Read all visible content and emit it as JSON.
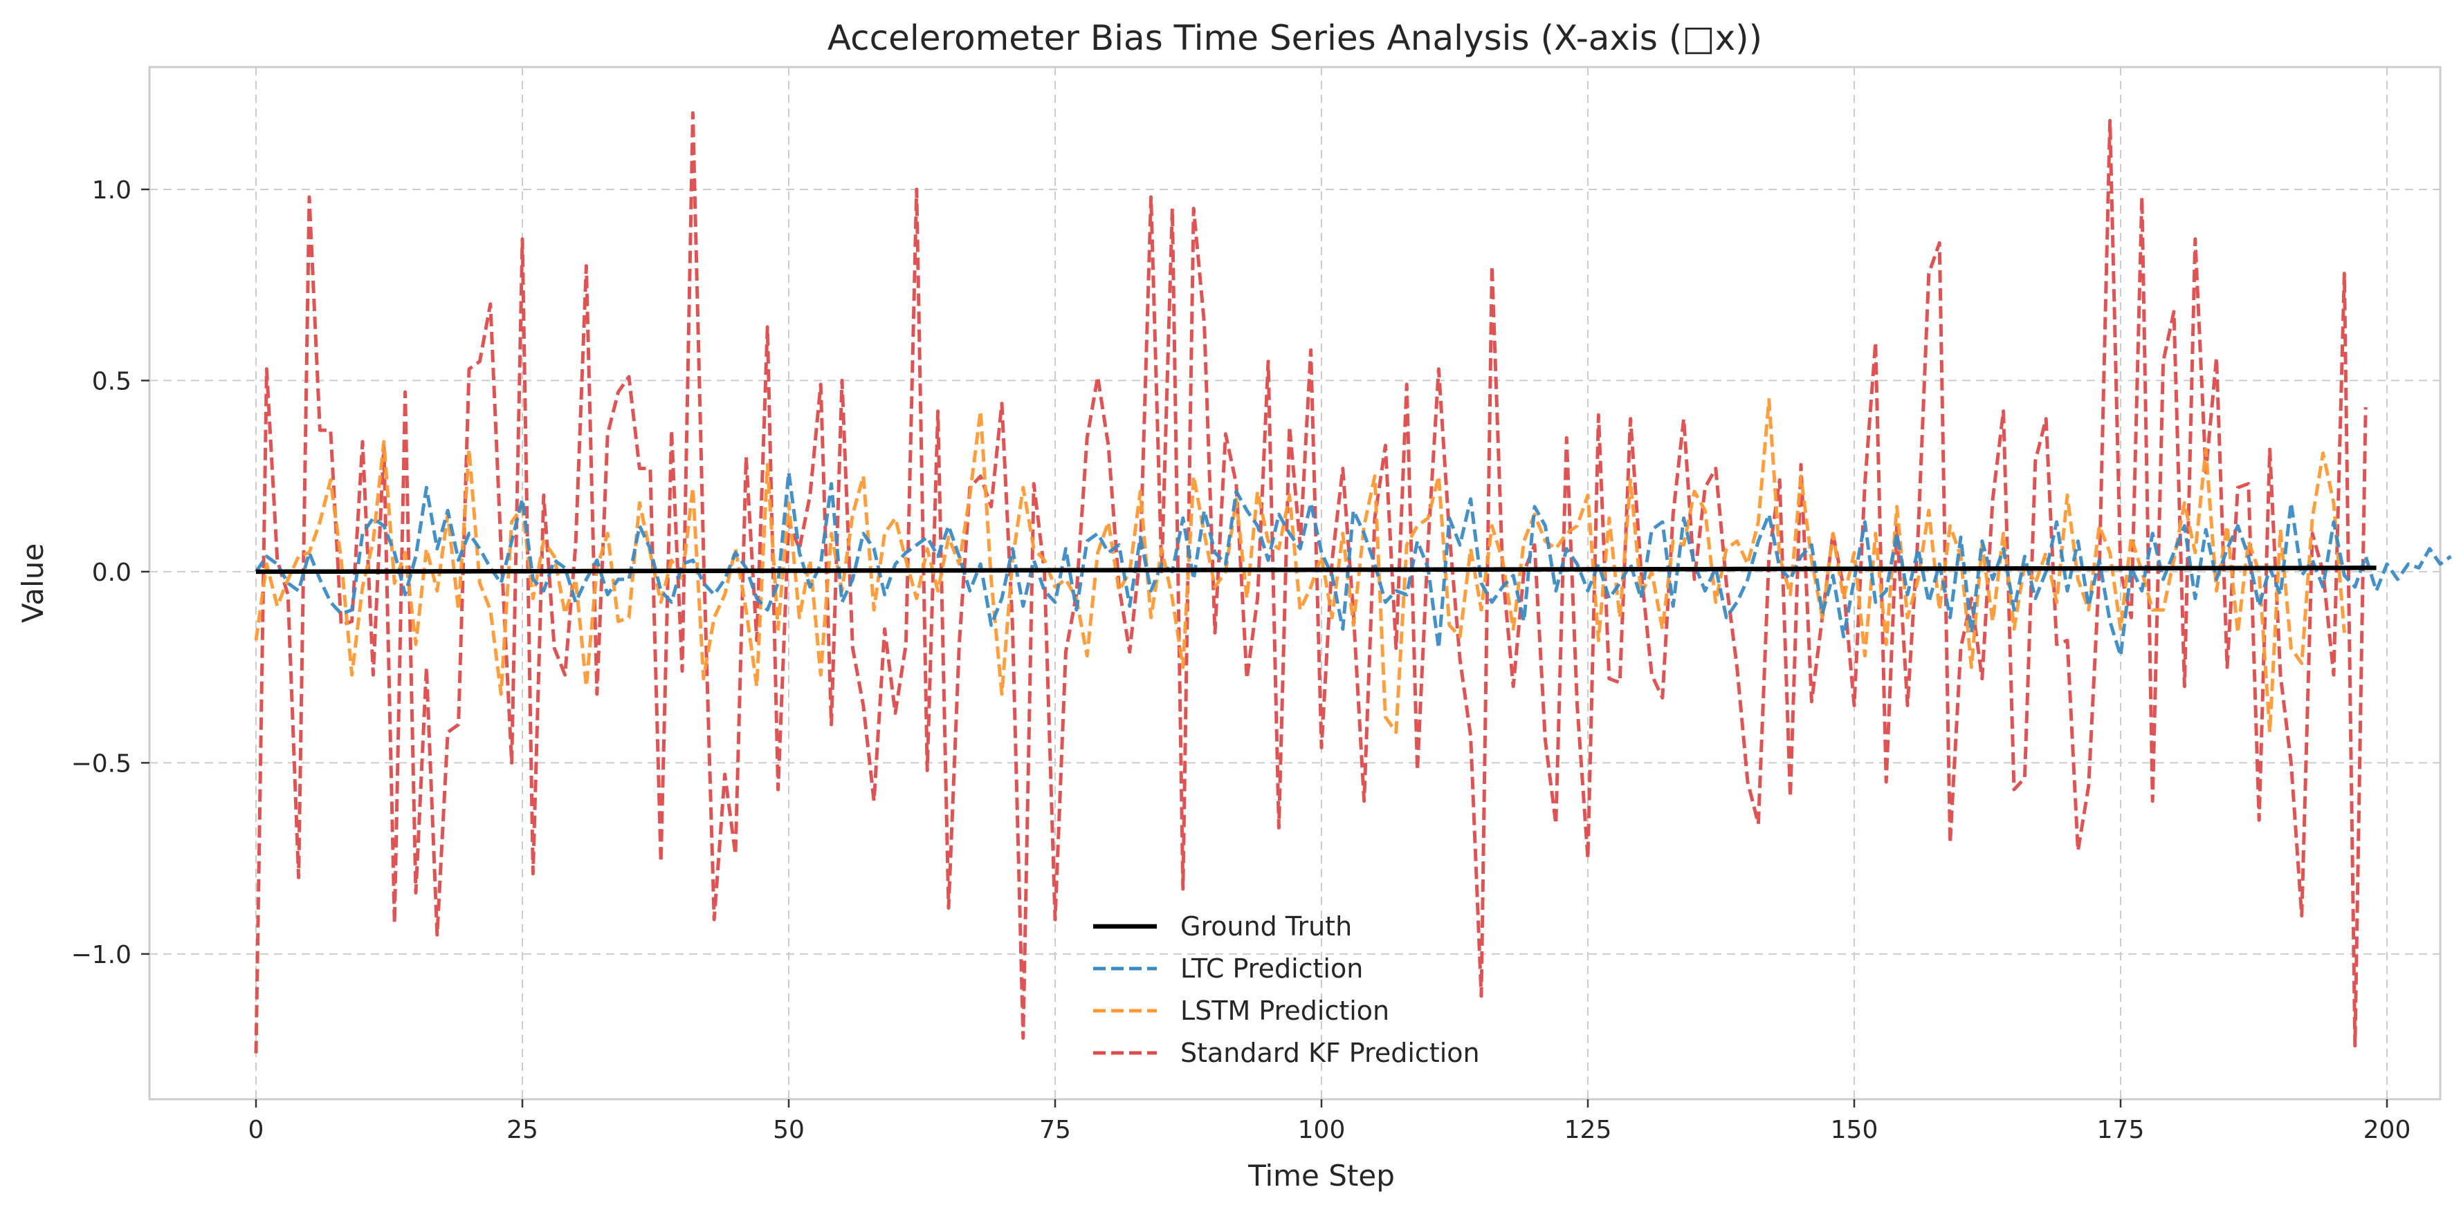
{
  "chart_data": {
    "type": "line",
    "title": "Accelerometer Bias Time Series Analysis (X-axis (□x))",
    "xlabel": "Time Step",
    "ylabel": "Value",
    "xlim": [
      -10,
      205
    ],
    "ylim": [
      -1.38,
      1.32
    ],
    "xticks": [
      0,
      25,
      50,
      75,
      100,
      125,
      150,
      175,
      200
    ],
    "yticks": [
      -1.0,
      -0.5,
      0.0,
      0.5,
      1.0
    ],
    "xtick_labels": [
      "0",
      "25",
      "50",
      "75",
      "100",
      "125",
      "150",
      "175",
      "200"
    ],
    "ytick_labels": [
      "−1.0",
      "−0.5",
      "0.0",
      "0.5",
      "1.0"
    ],
    "grid": true,
    "legend_position": "lower-center",
    "colors": {
      "ground_truth": "#000000",
      "ltc": "#3a8ac4",
      "lstm": "#ff9933",
      "kf": "#dc4a4a",
      "grid": "#cccccc",
      "frame": "#cccccc"
    },
    "series": [
      {
        "name": "Ground Truth",
        "key": "ground_truth",
        "style": "solid",
        "x_start": 0,
        "x_step": 1,
        "values": [
          0.0,
          0.0001,
          0.0001,
          0.0002,
          0.0002,
          0.0003,
          0.0003,
          0.0004,
          0.0004,
          0.0005,
          0.0005,
          0.0006,
          0.0006,
          0.0007,
          0.0007,
          0.0008,
          0.0008,
          0.0009,
          0.0009,
          0.001,
          0.001,
          0.0011,
          0.0011,
          0.0012,
          0.0012,
          0.0013,
          0.0013,
          0.0014,
          0.0014,
          0.0015,
          0.0015,
          0.0016,
          0.0016,
          0.0017,
          0.0017,
          0.0018,
          0.0018,
          0.0019,
          0.0019,
          0.002,
          0.002,
          0.0021,
          0.0021,
          0.0022,
          0.0022,
          0.0023,
          0.0023,
          0.0024,
          0.0024,
          0.0025,
          0.0025,
          0.0026,
          0.0026,
          0.0027,
          0.0027,
          0.0028,
          0.0028,
          0.0029,
          0.0029,
          0.003,
          0.003,
          0.0031,
          0.0031,
          0.0032,
          0.0032,
          0.0033,
          0.0033,
          0.0034,
          0.0034,
          0.0035,
          0.0035,
          0.0036,
          0.0036,
          0.0037,
          0.0037,
          0.0038,
          0.0038,
          0.0039,
          0.0039,
          0.004,
          0.004,
          0.0041,
          0.0041,
          0.0042,
          0.0042,
          0.0043,
          0.0043,
          0.0044,
          0.0044,
          0.0045,
          0.0045,
          0.0046,
          0.0046,
          0.0047,
          0.0047,
          0.0048,
          0.0048,
          0.0049,
          0.0049,
          0.005,
          0.005,
          0.0051,
          0.0051,
          0.0052,
          0.0052,
          0.0053,
          0.0053,
          0.0054,
          0.0054,
          0.0055,
          0.0055,
          0.0056,
          0.0056,
          0.0057,
          0.0057,
          0.0058,
          0.0058,
          0.0059,
          0.0059,
          0.006,
          0.006,
          0.0061,
          0.0061,
          0.0062,
          0.0062,
          0.0063,
          0.0063,
          0.0064,
          0.0064,
          0.0065,
          0.0065,
          0.0066,
          0.0066,
          0.0067,
          0.0067,
          0.0068,
          0.0068,
          0.0069,
          0.0069,
          0.007,
          0.007,
          0.0071,
          0.0071,
          0.0072,
          0.0072,
          0.0073,
          0.0073,
          0.0074,
          0.0074,
          0.0075,
          0.0075,
          0.0076,
          0.0076,
          0.0077,
          0.0077,
          0.0078,
          0.0078,
          0.0079,
          0.0079,
          0.008,
          0.008,
          0.0081,
          0.0081,
          0.0082,
          0.0082,
          0.0083,
          0.0083,
          0.0084,
          0.0084,
          0.0085,
          0.0085,
          0.0086,
          0.0086,
          0.0087,
          0.0087,
          0.0088,
          0.0088,
          0.0089,
          0.0089,
          0.009,
          0.009,
          0.0091,
          0.0091,
          0.0092,
          0.0092,
          0.0093,
          0.0093,
          0.0094,
          0.0094,
          0.0095,
          0.0095,
          0.0096,
          0.0096,
          0.0097,
          0.0097,
          0.0098,
          0.0098,
          0.0099,
          0.0099,
          0.01
        ]
      },
      {
        "name": "LTC Prediction",
        "key": "ltc",
        "style": "dashed",
        "x_start": 0,
        "x_step": 1,
        "values": [
          0.0,
          0.04,
          0.02,
          -0.03,
          -0.05,
          0.05,
          -0.02,
          -0.08,
          -0.11,
          -0.1,
          0.1,
          0.14,
          0.12,
          0.05,
          -0.06,
          0.04,
          0.22,
          0.06,
          0.16,
          0.03,
          0.1,
          0.06,
          0.01,
          -0.03,
          0.08,
          0.19,
          -0.02,
          -0.05,
          0.03,
          0.01,
          -0.08,
          -0.02,
          0.03,
          -0.06,
          -0.02,
          -0.02,
          0.12,
          0.06,
          -0.05,
          -0.08,
          0.02,
          0.03,
          -0.03,
          -0.06,
          -0.02,
          0.05,
          0.01,
          -0.07,
          -0.1,
          -0.03,
          0.26,
          0.05,
          -0.04,
          0.02,
          0.23,
          -0.08,
          -0.02,
          0.1,
          0.06,
          -0.06,
          0.02,
          0.05,
          0.07,
          0.09,
          0.04,
          0.12,
          0.04,
          -0.05,
          0.02,
          -0.14,
          -0.07,
          0.06,
          -0.09,
          0.03,
          -0.05,
          -0.08,
          0.06,
          -0.1,
          0.08,
          0.1,
          0.05,
          0.07,
          -0.09,
          0.09,
          -0.05,
          0.02,
          0.0,
          0.14,
          -0.02,
          0.16,
          0.05,
          0.02,
          0.21,
          0.16,
          0.12,
          0.03,
          0.15,
          0.1,
          0.06,
          0.18,
          0.05,
          -0.01,
          -0.15,
          0.16,
          0.1,
          0.02,
          -0.08,
          -0.05,
          -0.06,
          0.08,
          0.01,
          -0.2,
          0.14,
          0.07,
          0.19,
          -0.03,
          -0.08,
          -0.04,
          -0.01,
          -0.13,
          0.17,
          0.12,
          -0.05,
          0.06,
          0.02,
          -0.05,
          0.02,
          -0.07,
          -0.03,
          0.02,
          -0.07,
          0.11,
          0.13,
          -0.09,
          0.14,
          0.02,
          -0.05,
          0.01,
          -0.12,
          -0.08,
          -0.02,
          0.08,
          0.15,
          0.01,
          -0.02,
          0.04,
          0.07,
          -0.11,
          -0.01,
          -0.17,
          -0.02,
          0.13,
          -0.08,
          -0.05,
          0.1,
          -0.06,
          0.06,
          -0.08,
          0.02,
          -0.12,
          0.09,
          -0.16,
          0.08,
          -0.02,
          0.06,
          -0.1,
          0.04,
          -0.07,
          0.0,
          0.13,
          -0.05,
          0.08,
          -0.09,
          0.03,
          -0.13,
          -0.22,
          0.01,
          -0.05,
          0.1,
          -0.02,
          0.05,
          0.12,
          -0.07,
          0.11,
          -0.02,
          0.06,
          0.12,
          0.04,
          -0.09,
          0.01,
          -0.06,
          0.18,
          -0.01,
          0.03,
          -0.04,
          0.13,
          -0.01,
          -0.04,
          0.04,
          -0.05,
          0.02,
          -0.02,
          0.02,
          0.01,
          0.06,
          0.02,
          0.04
        ]
      },
      {
        "name": "LSTM Prediction",
        "key": "lstm",
        "style": "dashed",
        "x_start": 0,
        "x_step": 1,
        "values": [
          -0.18,
          0.02,
          -0.09,
          -0.02,
          0.04,
          0.05,
          0.13,
          0.24,
          0.03,
          -0.27,
          -0.04,
          0.08,
          0.34,
          -0.03,
          0.05,
          -0.19,
          0.06,
          -0.05,
          0.15,
          -0.1,
          0.32,
          -0.03,
          -0.1,
          -0.32,
          0.13,
          0.17,
          -0.07,
          0.08,
          0.04,
          -0.11,
          -0.02,
          -0.3,
          0.01,
          0.1,
          -0.13,
          -0.12,
          0.18,
          0.05,
          -0.08,
          0.03,
          -0.02,
          0.22,
          -0.28,
          -0.12,
          -0.06,
          0.06,
          -0.1,
          -0.3,
          0.28,
          -0.15,
          0.18,
          -0.12,
          0.03,
          -0.27,
          0.1,
          -0.05,
          0.15,
          0.25,
          -0.1,
          0.1,
          0.14,
          0.03,
          -0.07,
          0.06,
          -0.05,
          0.09,
          0.02,
          0.2,
          0.42,
          -0.02,
          -0.32,
          0.03,
          0.22,
          0.06,
          0.03,
          -0.04,
          -0.02,
          -0.07,
          -0.22,
          0.05,
          0.13,
          -0.05,
          0.0,
          0.21,
          -0.12,
          0.06,
          -0.07,
          -0.25,
          0.25,
          0.1,
          -0.04,
          0.0,
          0.19,
          -0.07,
          0.21,
          0.08,
          0.06,
          0.2,
          -0.1,
          -0.04,
          0.04,
          -0.12,
          0.1,
          -0.14,
          0.12,
          0.25,
          -0.38,
          -0.42,
          0.07,
          0.12,
          0.14,
          0.25,
          -0.14,
          -0.17,
          0.06,
          -0.1,
          0.12,
          0.03,
          -0.15,
          0.08,
          0.15,
          0.08,
          0.06,
          0.1,
          0.12,
          0.2,
          -0.18,
          0.14,
          -0.12,
          0.24,
          -0.06,
          0.0,
          -0.15,
          0.08,
          0.07,
          0.21,
          0.16,
          -0.08,
          0.06,
          0.08,
          0.02,
          0.13,
          0.45,
          0.04,
          -0.06,
          0.25,
          0.03,
          -0.12,
          0.1,
          -0.07,
          0.05,
          -0.22,
          0.1,
          -0.19,
          0.17,
          -0.12,
          -0.02,
          0.16,
          -0.1,
          0.12,
          0.04,
          -0.25,
          0.07,
          -0.13,
          0.1,
          -0.15,
          0.02,
          -0.03,
          0.05,
          -0.08,
          0.2,
          -0.02,
          -0.1,
          0.12,
          0.05,
          -0.15,
          0.09,
          0.0,
          -0.1,
          -0.1,
          0.03,
          0.18,
          0.05,
          0.32,
          -0.05,
          0.12,
          -0.16,
          0.08,
          0.0,
          -0.42,
          0.11,
          -0.2,
          -0.24,
          0.14,
          0.31,
          0.18,
          -0.16
        ]
      },
      {
        "name": "Standard KF Prediction",
        "key": "kf",
        "style": "dashed",
        "x_start": 0,
        "x_step": 1,
        "values": [
          -1.26,
          0.53,
          0.03,
          -0.06,
          -0.8,
          0.98,
          0.37,
          0.37,
          -0.14,
          -0.13,
          0.34,
          -0.27,
          0.33,
          -0.92,
          0.47,
          -0.84,
          -0.25,
          -0.95,
          -0.42,
          -0.4,
          0.53,
          0.55,
          0.7,
          0.06,
          -0.5,
          0.87,
          -0.79,
          0.2,
          -0.2,
          -0.27,
          0.07,
          0.8,
          -0.32,
          0.36,
          0.47,
          0.51,
          0.27,
          0.27,
          -0.76,
          0.37,
          -0.26,
          1.2,
          0.05,
          -0.91,
          -0.53,
          -0.74,
          0.3,
          -0.18,
          0.64,
          -0.57,
          0.13,
          0.06,
          0.2,
          0.49,
          -0.4,
          0.5,
          -0.2,
          -0.35,
          -0.6,
          -0.15,
          -0.37,
          -0.19,
          1.0,
          -0.52,
          0.42,
          -0.88,
          -0.19,
          0.22,
          0.25,
          0.17,
          0.44,
          -0.14,
          -1.22,
          0.23,
          0.0,
          -0.91,
          -0.21,
          -0.06,
          0.35,
          0.51,
          0.33,
          -0.04,
          -0.21,
          0.05,
          0.98,
          0.0,
          0.95,
          -0.83,
          0.95,
          0.65,
          -0.16,
          0.36,
          0.23,
          -0.28,
          -0.07,
          0.55,
          -0.67,
          0.38,
          0.07,
          0.58,
          -0.46,
          0.03,
          0.27,
          -0.11,
          -0.6,
          0.14,
          0.33,
          -0.2,
          0.49,
          -0.52,
          0.07,
          0.53,
          0.1,
          -0.23,
          -0.43,
          -1.11,
          0.8,
          0.0,
          -0.3,
          0.0,
          0.07,
          -0.44,
          -0.66,
          0.35,
          -0.35,
          -0.75,
          0.41,
          -0.28,
          -0.29,
          0.4,
          0.0,
          -0.27,
          -0.33,
          0.15,
          0.4,
          -0.02,
          0.22,
          0.27,
          -0.03,
          -0.25,
          -0.55,
          -0.66,
          0.04,
          0.24,
          -0.59,
          0.28,
          -0.34,
          -0.12,
          0.1,
          -0.04,
          -0.35,
          0.23,
          0.6,
          -0.55,
          0.12,
          -0.35,
          0.1,
          0.78,
          0.86,
          -0.71,
          -0.2,
          -0.07,
          -0.28,
          0.19,
          0.42,
          -0.57,
          -0.54,
          0.29,
          0.4,
          -0.19,
          -0.18,
          -0.73,
          -0.56,
          0.0,
          1.18,
          0.0,
          -0.12,
          0.98,
          -0.6,
          0.55,
          0.68,
          -0.3,
          0.87,
          0.26,
          0.56,
          -0.25,
          0.22,
          0.23,
          -0.65,
          0.32,
          -0.27,
          -0.5,
          -0.9,
          0.1,
          0.0,
          -0.27,
          0.78,
          -1.24,
          0.43
        ]
      }
    ]
  }
}
